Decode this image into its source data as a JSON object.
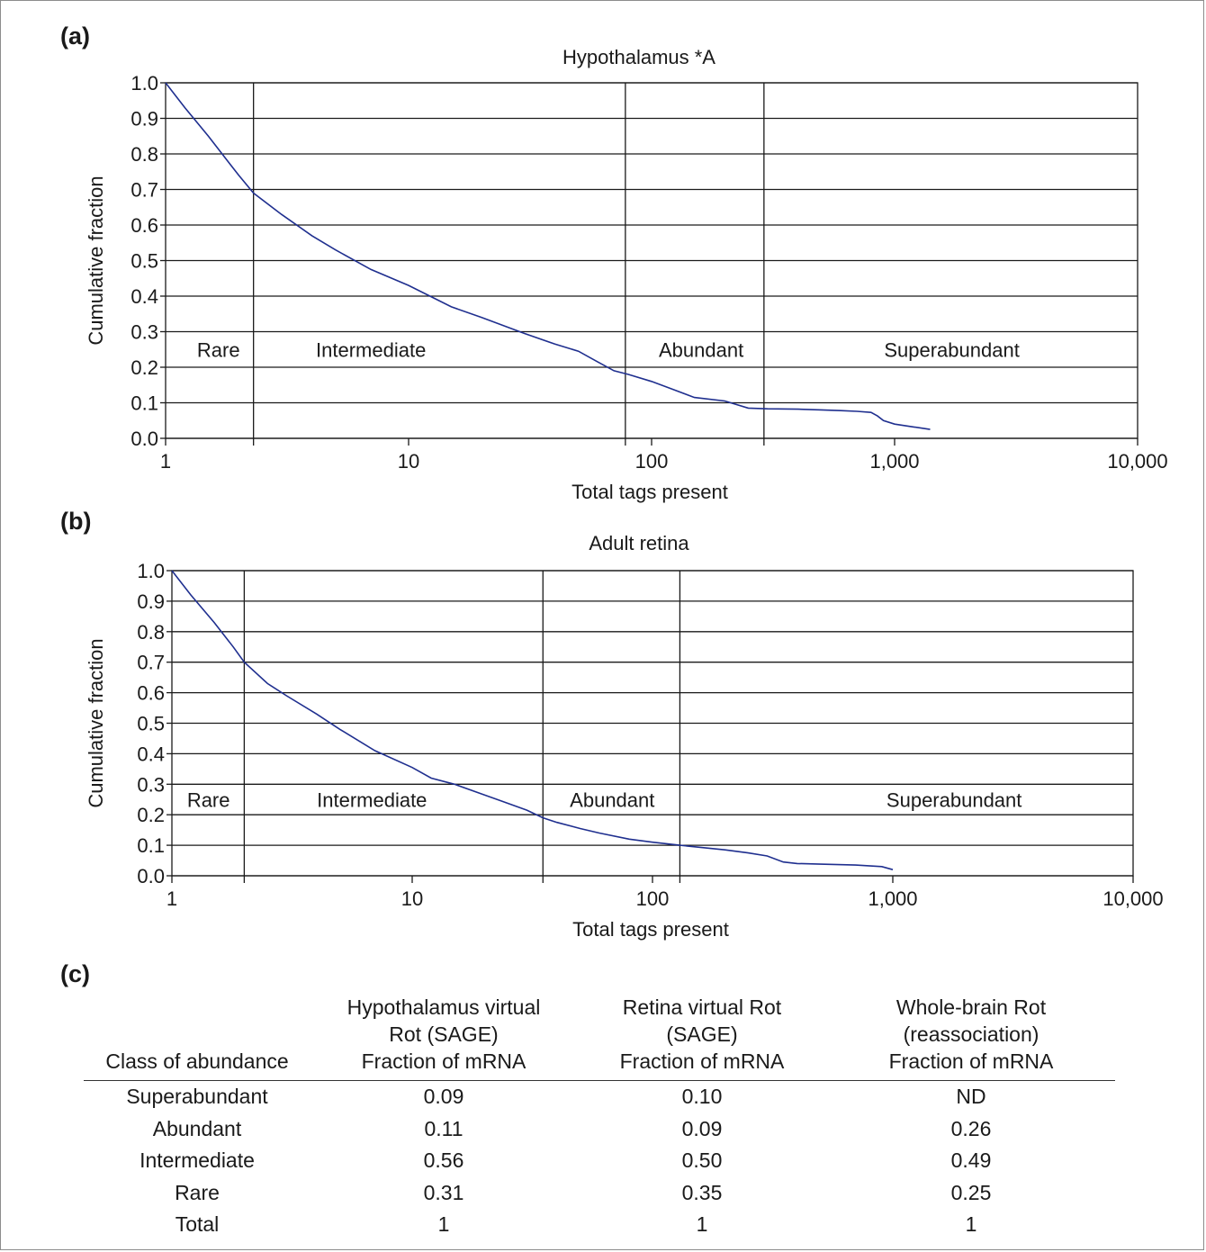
{
  "panels": [
    {
      "label": "(a)"
    },
    {
      "label": "(b)"
    },
    {
      "label": "(c)"
    }
  ],
  "chart_data": [
    {
      "type": "line",
      "title": "Hypothalamus *A",
      "xlabel": "Total tags present",
      "ylabel": "Cumulative fraction",
      "xscale": "log",
      "xlim": [
        1,
        10000
      ],
      "ylim": [
        0,
        1
      ],
      "xticks": [
        1,
        10,
        100,
        1000,
        10000
      ],
      "xtick_labels": [
        "1",
        "10",
        "100",
        "1,000",
        "10,000"
      ],
      "yticks": [
        0.0,
        0.1,
        0.2,
        0.3,
        0.4,
        0.5,
        0.6,
        0.7,
        0.8,
        0.9,
        1.0
      ],
      "ytick_labels": [
        "0.0",
        "0.1",
        "0.2",
        "0.3",
        "0.4",
        "0.5",
        "0.6",
        "0.7",
        "0.8",
        "0.9",
        "1.0"
      ],
      "grid": true,
      "line_color": "#1f2f8f",
      "class_boundaries": [
        2.3,
        78,
        290
      ],
      "class_labels": [
        {
          "text": "Rare",
          "x": 1.65,
          "y": 0.25
        },
        {
          "text": "Intermediate",
          "x": 7,
          "y": 0.25
        },
        {
          "text": "Abundant",
          "x": 160,
          "y": 0.25
        },
        {
          "text": "Superabundant",
          "x": 1720,
          "y": 0.25
        }
      ],
      "series": [
        {
          "x": [
            1,
            1.2,
            1.5,
            1.8,
            2.0,
            2.3,
            3,
            4,
            5,
            7,
            10,
            15,
            20,
            30,
            40,
            50,
            60,
            70,
            80,
            100,
            120,
            150,
            200,
            250,
            300,
            400,
            500,
            600,
            700,
            800,
            850,
            900,
            1000,
            1200,
            1400
          ],
          "y": [
            1.0,
            0.93,
            0.85,
            0.78,
            0.74,
            0.69,
            0.63,
            0.57,
            0.53,
            0.475,
            0.43,
            0.37,
            0.34,
            0.295,
            0.265,
            0.245,
            0.215,
            0.19,
            0.18,
            0.16,
            0.14,
            0.115,
            0.105,
            0.085,
            0.083,
            0.082,
            0.08,
            0.078,
            0.076,
            0.073,
            0.063,
            0.05,
            0.04,
            0.032,
            0.025
          ]
        }
      ]
    },
    {
      "type": "line",
      "title": "Adult retina",
      "xlabel": "Total tags present",
      "ylabel": "Cumulative fraction",
      "xscale": "log",
      "xlim": [
        1,
        10000
      ],
      "ylim": [
        0,
        1
      ],
      "xticks": [
        1,
        10,
        100,
        1000,
        10000
      ],
      "xtick_labels": [
        "1",
        "10",
        "100",
        "1,000",
        "10,000"
      ],
      "yticks": [
        0.0,
        0.1,
        0.2,
        0.3,
        0.4,
        0.5,
        0.6,
        0.7,
        0.8,
        0.9,
        1.0
      ],
      "ytick_labels": [
        "0.0",
        "0.1",
        "0.2",
        "0.3",
        "0.4",
        "0.5",
        "0.6",
        "0.7",
        "0.8",
        "0.9",
        "1.0"
      ],
      "grid": true,
      "line_color": "#1f2f8f",
      "class_boundaries": [
        2,
        35,
        130
      ],
      "class_labels": [
        {
          "text": "Rare",
          "x": 1.42,
          "y": 0.25
        },
        {
          "text": "Intermediate",
          "x": 6.8,
          "y": 0.25
        },
        {
          "text": "Abundant",
          "x": 68,
          "y": 0.25
        },
        {
          "text": "Superabundant",
          "x": 1800,
          "y": 0.25
        }
      ],
      "series": [
        {
          "x": [
            1,
            1.2,
            1.5,
            1.8,
            2.0,
            2.5,
            3,
            4,
            5,
            7,
            10,
            12,
            15,
            20,
            30,
            35,
            40,
            50,
            60,
            80,
            100,
            130,
            150,
            200,
            250,
            300,
            350,
            400,
            500,
            700,
            900,
            1000
          ],
          "y": [
            1.0,
            0.92,
            0.83,
            0.75,
            0.7,
            0.63,
            0.59,
            0.53,
            0.48,
            0.41,
            0.355,
            0.32,
            0.3,
            0.265,
            0.215,
            0.19,
            0.175,
            0.155,
            0.14,
            0.12,
            0.11,
            0.1,
            0.095,
            0.085,
            0.075,
            0.065,
            0.045,
            0.04,
            0.038,
            0.035,
            0.03,
            0.02
          ]
        }
      ]
    },
    {
      "type": "table",
      "columns": [
        [
          "Class of abundance"
        ],
        [
          "Hypothalamus virtual",
          "Rot (SAGE)",
          "Fraction of mRNA"
        ],
        [
          "Retina virtual Rot",
          "(SAGE)",
          "Fraction of mRNA"
        ],
        [
          "Whole-brain Rot",
          "(reassociation)",
          "Fraction of mRNA"
        ]
      ],
      "rows": [
        [
          "Superabundant",
          "0.09",
          "0.10",
          "ND"
        ],
        [
          "Abundant",
          "0.11",
          "0.09",
          "0.26"
        ],
        [
          "Intermediate",
          "0.56",
          "0.50",
          "0.49"
        ],
        [
          "Rare",
          "0.31",
          "0.35",
          "0.25"
        ],
        [
          "Total",
          "1",
          "1",
          "1"
        ]
      ]
    }
  ]
}
